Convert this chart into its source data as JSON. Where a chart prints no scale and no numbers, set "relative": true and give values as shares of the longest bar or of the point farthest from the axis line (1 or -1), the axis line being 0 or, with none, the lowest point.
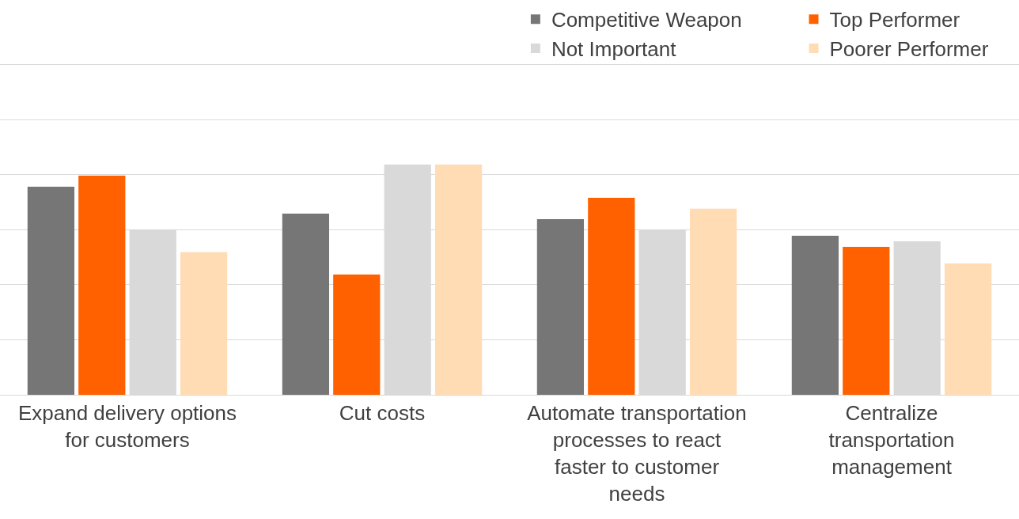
{
  "chart_data": {
    "type": "bar",
    "relative": true,
    "grid": "y",
    "legend": "top right",
    "categories": [
      "Expand delivery options for customers",
      "Cut costs",
      "Automate transportation processes to react faster to customer needs",
      "Centralize transportation management"
    ],
    "series": [
      {
        "name": "Competitive Weapon",
        "color": "#767676",
        "values": [
          0.904,
          0.787,
          0.763,
          0.691
        ]
      },
      {
        "name": "Top Performer",
        "color": "#ff6100",
        "values": [
          0.952,
          0.522,
          0.856,
          0.643
        ]
      },
      {
        "name": "Not Important",
        "color": "#d9d9d9",
        "values": [
          0.715,
          1,
          0.715,
          0.667
        ]
      },
      {
        "name": "Poorer Performer",
        "color": "#ffdcb4",
        "values": [
          0.619,
          1,
          0.808,
          0.57
        ]
      }
    ]
  }
}
